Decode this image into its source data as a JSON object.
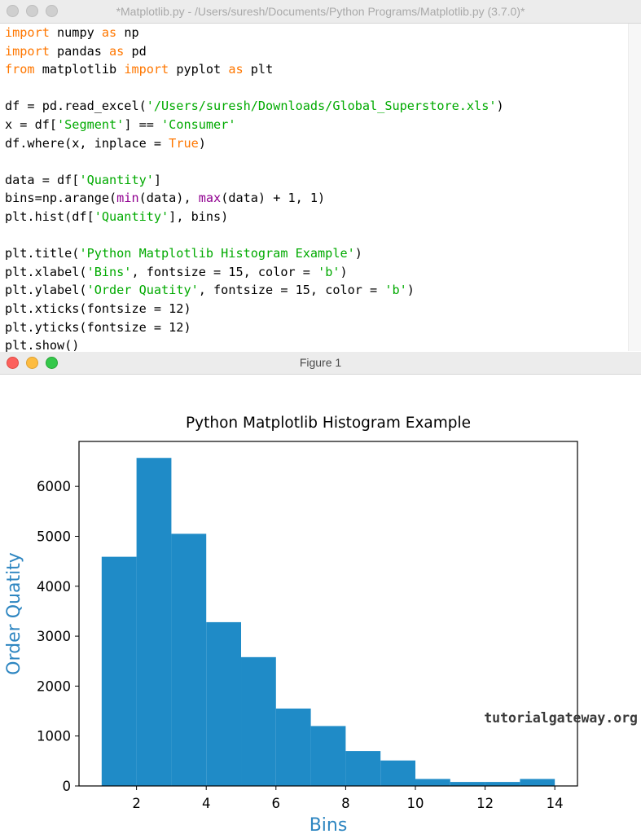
{
  "idle_window": {
    "title": "*Matplotlib.py - /Users/suresh/Documents/Python Programs/Matplotlib.py (3.7.0)*",
    "code_lines": [
      [
        {
          "t": "import",
          "c": "kw"
        },
        {
          "t": " numpy "
        },
        {
          "t": "as",
          "c": "kw"
        },
        {
          "t": " np"
        }
      ],
      [
        {
          "t": "import",
          "c": "kw"
        },
        {
          "t": " pandas "
        },
        {
          "t": "as",
          "c": "kw"
        },
        {
          "t": " pd"
        }
      ],
      [
        {
          "t": "from",
          "c": "kw"
        },
        {
          "t": " matplotlib "
        },
        {
          "t": "import",
          "c": "kw"
        },
        {
          "t": " pyplot "
        },
        {
          "t": "as",
          "c": "kw"
        },
        {
          "t": " plt"
        }
      ],
      [],
      [
        {
          "t": "df = pd.read_excel("
        },
        {
          "t": "'/Users/suresh/Downloads/Global_Superstore.xls'",
          "c": "str"
        },
        {
          "t": ")"
        }
      ],
      [
        {
          "t": "x = df["
        },
        {
          "t": "'Segment'",
          "c": "str"
        },
        {
          "t": "] == "
        },
        {
          "t": "'Consumer'",
          "c": "str"
        }
      ],
      [
        {
          "t": "df.where(x, inplace = "
        },
        {
          "t": "True",
          "c": "kw"
        },
        {
          "t": ")"
        }
      ],
      [],
      [
        {
          "t": "data = df["
        },
        {
          "t": "'Quantity'",
          "c": "str"
        },
        {
          "t": "]"
        }
      ],
      [
        {
          "t": "bins=np.arange("
        },
        {
          "t": "min",
          "c": "bi"
        },
        {
          "t": "(data), "
        },
        {
          "t": "max",
          "c": "bi"
        },
        {
          "t": "(data) + 1, 1)"
        }
      ],
      [
        {
          "t": "plt.hist(df["
        },
        {
          "t": "'Quantity'",
          "c": "str"
        },
        {
          "t": "], bins)"
        }
      ],
      [],
      [
        {
          "t": "plt.title("
        },
        {
          "t": "'Python Matplotlib Histogram Example'",
          "c": "str"
        },
        {
          "t": ")"
        }
      ],
      [
        {
          "t": "plt.xlabel("
        },
        {
          "t": "'Bins'",
          "c": "str"
        },
        {
          "t": ", fontsize = 15, color = "
        },
        {
          "t": "'b'",
          "c": "str"
        },
        {
          "t": ")"
        }
      ],
      [
        {
          "t": "plt.ylabel("
        },
        {
          "t": "'Order Quatity'",
          "c": "str"
        },
        {
          "t": ", fontsize = 15, color = "
        },
        {
          "t": "'b'",
          "c": "str"
        },
        {
          "t": ")"
        }
      ],
      [
        {
          "t": "plt.xticks(fontsize = 12)"
        }
      ],
      [
        {
          "t": "plt.yticks(fontsize = 12)"
        }
      ],
      [
        {
          "t": "plt.show()"
        }
      ]
    ]
  },
  "figure_window": {
    "title": "Figure 1"
  },
  "watermark": "tutorialgateway.org",
  "colors": {
    "keyword": "#ff7700",
    "string": "#00aa00",
    "builtin": "#900090",
    "bar": "#1f8bc7",
    "axis_label": "#2e86c1"
  },
  "chart_data": {
    "type": "bar",
    "title": "Python Matplotlib Histogram Example",
    "xlabel": "Bins",
    "ylabel": "Order Quatity",
    "xlim": [
      0.35,
      14.65
    ],
    "ylim": [
      0,
      6900
    ],
    "xticks": [
      2,
      4,
      6,
      8,
      10,
      12,
      14
    ],
    "yticks": [
      0,
      1000,
      2000,
      3000,
      4000,
      5000,
      6000
    ],
    "bin_edges": [
      1,
      2,
      3,
      4,
      5,
      6,
      7,
      8,
      9,
      10,
      11,
      12,
      13,
      14
    ],
    "values": [
      4590,
      6570,
      5050,
      3280,
      2580,
      1550,
      1200,
      700,
      510,
      140,
      80,
      80,
      140
    ],
    "grid": false,
    "legend": "none"
  }
}
